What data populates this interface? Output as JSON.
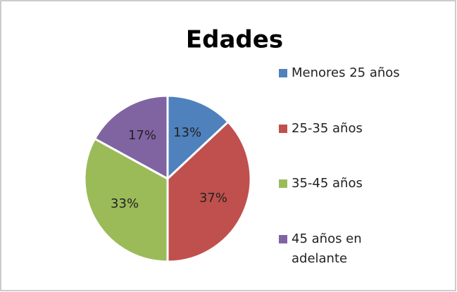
{
  "chart_data": {
    "type": "pie",
    "title": "Edades",
    "categories": [
      "Menores 25 años",
      "25-35 años",
      "35-45 años",
      "45 años en adelante"
    ],
    "values": [
      13,
      37,
      33,
      17
    ],
    "value_labels": [
      "13%",
      "37%",
      "33%",
      "17%"
    ],
    "colors": [
      "#4f81bd",
      "#c0504d",
      "#9bbb59",
      "#8064a2"
    ],
    "legend": "right"
  }
}
